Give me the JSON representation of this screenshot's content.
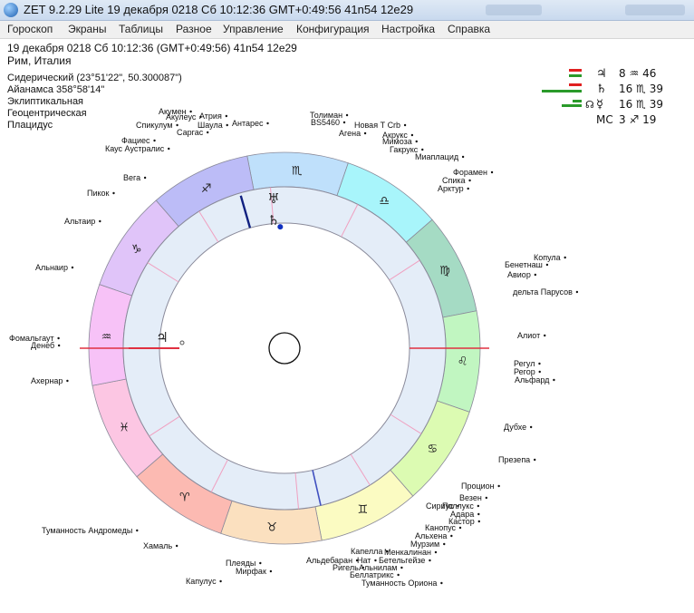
{
  "window": {
    "title": "ZET 9.2.29 Lite   19 декабря 0218  Сб  10:12:36 GMT+0:49:56 41n54  12e29"
  },
  "menu": [
    "Гороскоп",
    "Экраны",
    "Таблицы",
    "Разное",
    "Управление",
    "Конфигурация",
    "Настройка",
    "Справка"
  ],
  "header": {
    "datetime": "19 декабря 0218  Сб  10:12:36 (GMT+0:49:56) 41n54  12e29",
    "place": "Рим, Италия"
  },
  "settings": [
    "Сидерический (23°51'22\", 50.300087\")",
    "Айанамса 358°58'14\"",
    "Эклиптикальная",
    "Геоцентрическая",
    "Плацидус"
  ],
  "planets": [
    {
      "glyph": "♃",
      "degree": "8",
      "sign_glyph": "♒",
      "minutes": "46"
    },
    {
      "glyph": "♄",
      "degree": "16",
      "sign_glyph": "♏",
      "minutes": "39"
    },
    {
      "prefix": "☊",
      "glyph": "☿",
      "degree": "16",
      "sign_glyph": "♏",
      "minutes": "39"
    },
    {
      "glyph": "MC",
      "degree": "3",
      "sign_glyph": "♐",
      "minutes": "19"
    }
  ],
  "zodiac": [
    {
      "glyph": "♏",
      "color": "#bfe0fb"
    },
    {
      "glyph": "♎",
      "color": "#a8f5fb"
    },
    {
      "glyph": "♍",
      "color": "#a5dbc4"
    },
    {
      "glyph": "♌",
      "color": "#c1f6c1"
    },
    {
      "glyph": "♋",
      "color": "#dcfbb2"
    },
    {
      "glyph": "♊",
      "color": "#fbfbc2"
    },
    {
      "glyph": "♉",
      "color": "#fbe0bf"
    },
    {
      "glyph": "♈",
      "color": "#fcbab2"
    },
    {
      "glyph": "♓",
      "color": "#fcc6e3"
    },
    {
      "glyph": "♒",
      "color": "#f7c2f7"
    },
    {
      "glyph": "♑",
      "color": "#e0c4f9"
    },
    {
      "glyph": "♐",
      "color": "#bcbcf7"
    }
  ],
  "chart_planets": [
    {
      "glyph": "♅"
    },
    {
      "glyph": "♄"
    },
    {
      "glyph": "♃"
    }
  ],
  "stars": [
    "Акумен",
    "Акулеус",
    "Атрия",
    "Спикулум",
    "Шаула",
    "Саргас",
    "Антарес",
    "Фациес",
    "Каус Аустралис",
    "Толиман",
    "BS5460",
    "Агена",
    "Новая Т Crb",
    "Акрукс",
    "Мимоза",
    "Гакрукс",
    "Миаплацид",
    "Форамен",
    "Спика",
    "Арктур",
    "Вега",
    "Пикок",
    "Альтаир",
    "Альнаир",
    "Копула",
    "Бенетнаш",
    "Авиор",
    "дельта Парусов",
    "Фомальгаут",
    "Денеб",
    "Алиот",
    "Ахернар",
    "Регул",
    "Регор",
    "Альфард",
    "Дубхе",
    "Презепа",
    "Процион",
    "Везен",
    "Сириус",
    "Поллукс",
    "Адара",
    "Кастор",
    "Канопус",
    "Альхена",
    "Мурзим",
    "Менкалинан",
    "Туманность Андромеды",
    "Хамаль",
    "Капелла",
    "Нат",
    "Бетельгейзе",
    "Альдебаран",
    "Ригель",
    "Альнилам",
    "Плеяды",
    "Мирфак",
    "Беллатрикс",
    "Капулус",
    "Туманность Ориона"
  ]
}
